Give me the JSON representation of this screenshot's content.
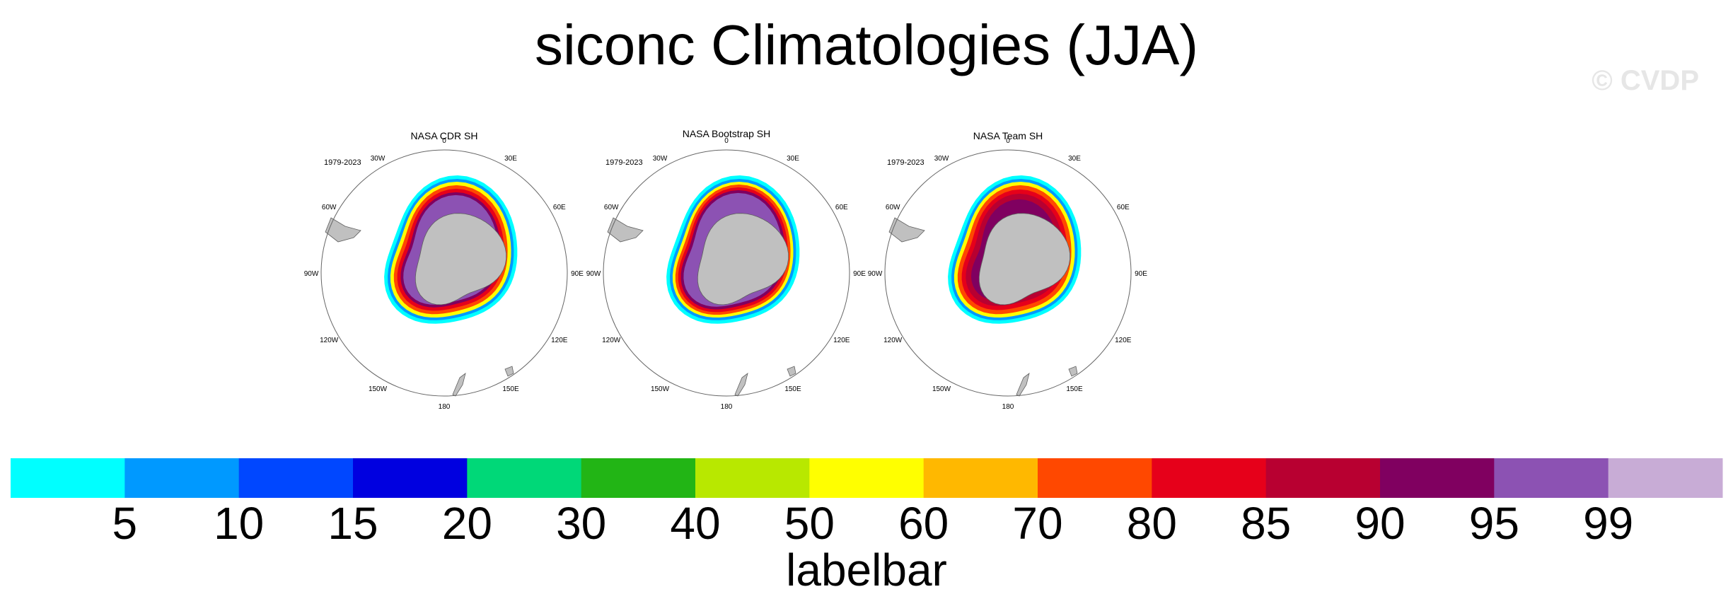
{
  "title": "siconc Climatologies (JJA)",
  "watermark": "© CVDP",
  "panels": [
    {
      "title": "NASA CDR SH",
      "period": "1979-2023"
    },
    {
      "title": "NASA Bootstrap SH",
      "period": "1979-2023"
    },
    {
      "title": "NASA Team SH",
      "period": "1979-2023"
    }
  ],
  "lon_labels": [
    "0",
    "30E",
    "60E",
    "90E",
    "120E",
    "150E",
    "180",
    "150W",
    "120W",
    "90W",
    "60W",
    "30W"
  ],
  "labelbar": {
    "title": "labelbar",
    "ticks": [
      "5",
      "10",
      "15",
      "20",
      "30",
      "40",
      "50",
      "60",
      "70",
      "80",
      "85",
      "90",
      "95",
      "99"
    ],
    "colors": [
      "#00ffff",
      "#0099ff",
      "#0047ff",
      "#0000e0",
      "#00d878",
      "#22b515",
      "#b8e800",
      "#ffff00",
      "#ffb800",
      "#ff4800",
      "#e6001a",
      "#b80031",
      "#800060",
      "#8c52b3",
      "#c8acd6"
    ]
  },
  "chart_data": {
    "type": "heatmap",
    "title": "siconc Climatologies (JJA)",
    "projection": "south polar stereographic",
    "season": "JJA",
    "period": "1979-2023",
    "variable": "siconc",
    "panels": [
      "NASA CDR SH",
      "NASA Bootstrap SH",
      "NASA Team SH"
    ],
    "levels": [
      5,
      10,
      15,
      20,
      30,
      40,
      50,
      60,
      70,
      80,
      85,
      90,
      95,
      99
    ],
    "colorbar_label": "labelbar",
    "land_color": "#c0c0c0"
  }
}
